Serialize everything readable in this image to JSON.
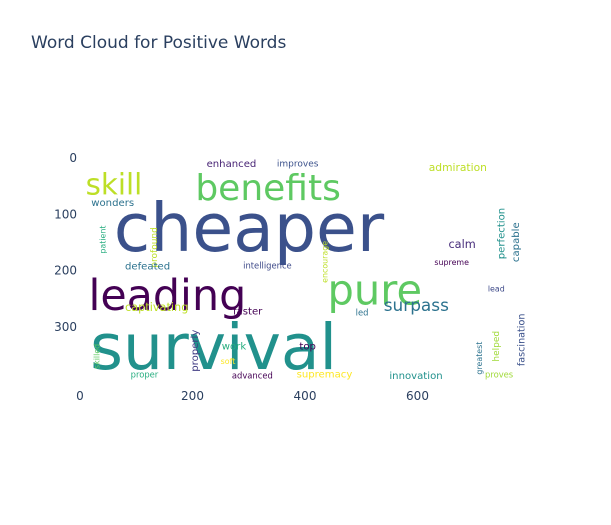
{
  "title": "Word Cloud for Positive Words",
  "chart_data": {
    "type": "word_cloud",
    "title": "Word Cloud for Positive Words",
    "image_width": 800,
    "image_height": 400,
    "xaxis": {
      "range": [
        0,
        800
      ],
      "ticks": [
        0,
        200,
        400,
        600
      ],
      "tick_labels": [
        "0",
        "200",
        "400",
        "600"
      ]
    },
    "yaxis": {
      "range": [
        400,
        0
      ],
      "ticks": [
        0,
        100,
        200,
        300
      ],
      "tick_labels": [
        "0",
        "100",
        "200",
        "300"
      ],
      "reversed": true
    },
    "grid": false,
    "words": [
      {
        "text": "cheaper",
        "x": 60,
        "y": 165,
        "size": 118,
        "rot": 0,
        "color": "#3b518b"
      },
      {
        "text": "survival",
        "x": 18,
        "y": 375,
        "size": 112,
        "rot": 0,
        "color": "#21918c"
      },
      {
        "text": "benefits",
        "x": 205,
        "y": 75,
        "size": 64,
        "rot": 0,
        "color": "#5ec962"
      },
      {
        "text": "leading",
        "x": 15,
        "y": 270,
        "size": 76,
        "rot": 0,
        "color": "#440154"
      },
      {
        "text": "pure",
        "x": 440,
        "y": 260,
        "size": 74,
        "rot": 0,
        "color": "#5ec962"
      },
      {
        "text": "skill",
        "x": 10,
        "y": 65,
        "size": 52,
        "rot": 0,
        "color": "#bddf26"
      },
      {
        "text": "surpass",
        "x": 540,
        "y": 272,
        "size": 30,
        "rot": 0,
        "color": "#2c728e"
      },
      {
        "text": "enhanced",
        "x": 225,
        "y": 16,
        "size": 18,
        "rot": 0,
        "color": "#482475"
      },
      {
        "text": "improves",
        "x": 350,
        "y": 15,
        "size": 16,
        "rot": 0,
        "color": "#3b518b"
      },
      {
        "text": "admiration",
        "x": 620,
        "y": 23,
        "size": 19,
        "rot": 0,
        "color": "#bddf26"
      },
      {
        "text": "wonders",
        "x": 20,
        "y": 85,
        "size": 18,
        "rot": 0,
        "color": "#2c728e"
      },
      {
        "text": "calm",
        "x": 655,
        "y": 160,
        "size": 20,
        "rot": 0,
        "color": "#472d7b"
      },
      {
        "text": "perfection",
        "x": 755,
        "y": 180,
        "size": 18,
        "rot": -90,
        "color": "#21918c"
      },
      {
        "text": "capable",
        "x": 780,
        "y": 185,
        "size": 18,
        "rot": -90,
        "color": "#2c728e"
      },
      {
        "text": "profound",
        "x": 137,
        "y": 195,
        "size": 16,
        "rot": -90,
        "color": "#bddf26"
      },
      {
        "text": "patient",
        "x": 45,
        "y": 170,
        "size": 14,
        "rot": -90,
        "color": "#28ae80"
      },
      {
        "text": "encourage",
        "x": 440,
        "y": 222,
        "size": 14,
        "rot": -90,
        "color": "#bddf26"
      },
      {
        "text": "defeated",
        "x": 80,
        "y": 198,
        "size": 18,
        "rot": 0,
        "color": "#2c728e"
      },
      {
        "text": "intelligence",
        "x": 290,
        "y": 196,
        "size": 15,
        "rot": 0,
        "color": "#3e4a89"
      },
      {
        "text": "supreme",
        "x": 630,
        "y": 190,
        "size": 14,
        "rot": 0,
        "color": "#440154"
      },
      {
        "text": "lead",
        "x": 725,
        "y": 237,
        "size": 14,
        "rot": 0,
        "color": "#3e4a89"
      },
      {
        "text": "fascination",
        "x": 790,
        "y": 370,
        "size": 17,
        "rot": -90,
        "color": "#3b518b"
      },
      {
        "text": "captivating",
        "x": 80,
        "y": 272,
        "size": 20,
        "rot": 0,
        "color": "#bddf26"
      },
      {
        "text": "faster",
        "x": 272,
        "y": 278,
        "size": 18,
        "rot": 0,
        "color": "#440154"
      },
      {
        "text": "led",
        "x": 490,
        "y": 280,
        "size": 15,
        "rot": 0,
        "color": "#2c728e"
      },
      {
        "text": "properly",
        "x": 210,
        "y": 380,
        "size": 18,
        "rot": -90,
        "color": "#433e85"
      },
      {
        "text": "work",
        "x": 252,
        "y": 340,
        "size": 18,
        "rot": 0,
        "color": "#28ae80"
      },
      {
        "text": "top",
        "x": 390,
        "y": 340,
        "size": 18,
        "rot": 0,
        "color": "#440154"
      },
      {
        "text": "soft",
        "x": 250,
        "y": 366,
        "size": 14,
        "rot": 0,
        "color": "#fde725"
      },
      {
        "text": "skilled",
        "x": 35,
        "y": 375,
        "size": 14,
        "rot": -90,
        "color": "#5ec962"
      },
      {
        "text": "greatest",
        "x": 715,
        "y": 385,
        "size": 14,
        "rot": -90,
        "color": "#2c728e"
      },
      {
        "text": "helped",
        "x": 745,
        "y": 362,
        "size": 16,
        "rot": -90,
        "color": "#a0da39"
      },
      {
        "text": "proper",
        "x": 90,
        "y": 390,
        "size": 15,
        "rot": 0,
        "color": "#28ae80"
      },
      {
        "text": "advanced",
        "x": 270,
        "y": 392,
        "size": 15,
        "rot": 0,
        "color": "#440154"
      },
      {
        "text": "supremacy",
        "x": 385,
        "y": 390,
        "size": 18,
        "rot": 0,
        "color": "#fde725"
      },
      {
        "text": "innovation",
        "x": 550,
        "y": 393,
        "size": 18,
        "rot": 0,
        "color": "#21918c"
      },
      {
        "text": "proves",
        "x": 720,
        "y": 390,
        "size": 15,
        "rot": 0,
        "color": "#a0da39"
      }
    ]
  }
}
